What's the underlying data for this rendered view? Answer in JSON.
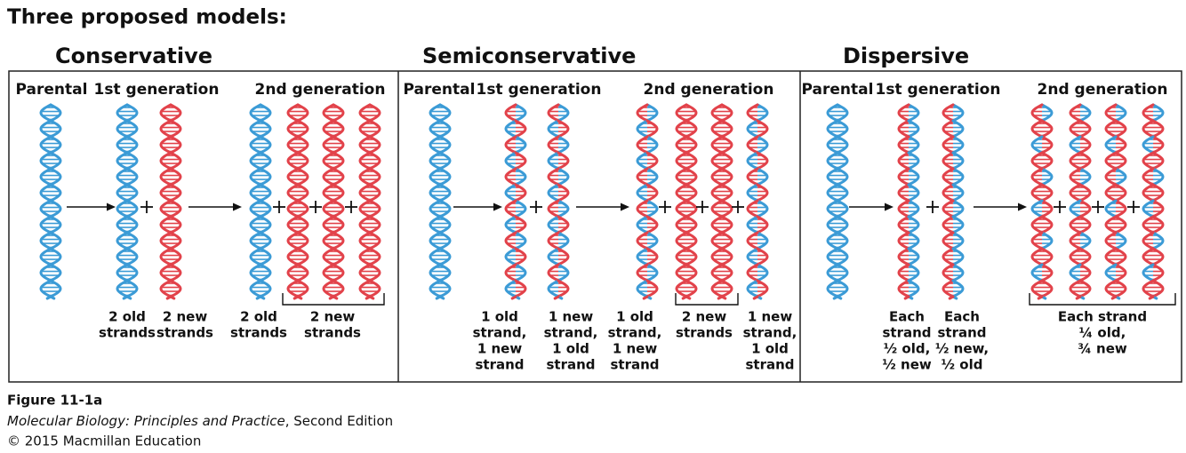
{
  "title": "Three proposed models:",
  "panels": [
    {
      "heading": "Conservative",
      "labels": [
        "Parental",
        "1st generation",
        "2nd generation"
      ],
      "captions": [
        [
          "2 old",
          "strands"
        ],
        [
          "2 new",
          "strands"
        ],
        [
          "2 old",
          "strands"
        ],
        [
          "2 new",
          "strands"
        ]
      ]
    },
    {
      "heading": "Semiconservative",
      "labels": [
        "Parental",
        "1st generation",
        "2nd generation"
      ],
      "captions": [
        [
          "1 old",
          "strand,",
          "1 new",
          "strand"
        ],
        [
          "1 new",
          "strand,",
          "1 old",
          "strand"
        ],
        [
          "1 old",
          "strand,",
          "1 new",
          "strand"
        ],
        [
          "2 new",
          "strands"
        ],
        [
          "1 new",
          "strand,",
          "1 old",
          "strand"
        ]
      ]
    },
    {
      "heading": "Dispersive",
      "labels": [
        "Parental",
        "1st generation",
        "2nd generation"
      ],
      "captions": [
        [
          "Each",
          "strand",
          "½ old,",
          "½ new"
        ],
        [
          "Each",
          "strand",
          "½ new,",
          "½ old"
        ],
        [
          "Each strand",
          "¼ old,",
          "¾ new"
        ]
      ]
    }
  ],
  "footer": {
    "figure": "Figure 11-1a",
    "source_title": "Molecular Biology: Principles and Practice",
    "source_rest": ", Second Edition",
    "copyright": "© 2015 Macmillan Education"
  }
}
